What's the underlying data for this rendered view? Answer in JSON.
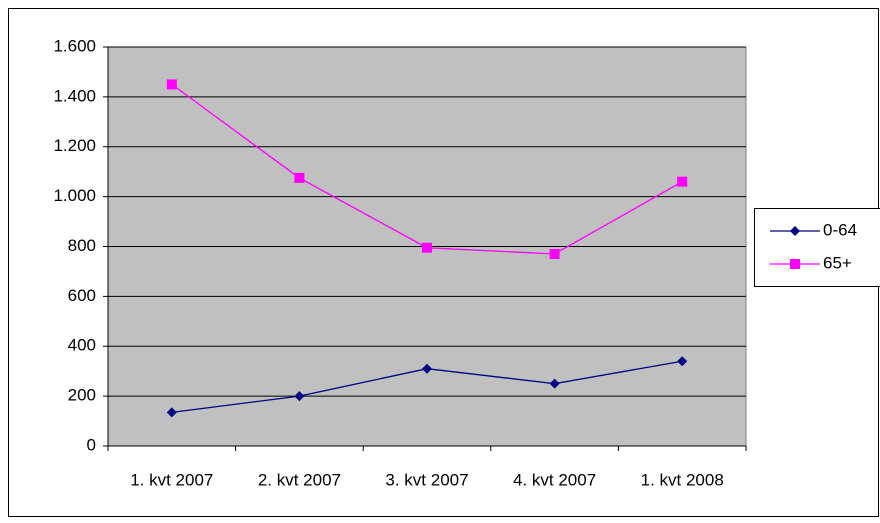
{
  "chart_data": {
    "type": "line",
    "categories": [
      "1. kvt 2007",
      "2. kvt 2007",
      "3. kvt 2007",
      "4. kvt 2007",
      "1. kvt 2008"
    ],
    "series": [
      {
        "name": "0-64",
        "color": "#000080",
        "marker": "diamond",
        "values": [
          135,
          200,
          310,
          250,
          340
        ]
      },
      {
        "name": "65+",
        "color": "#ff00ff",
        "marker": "square",
        "values": [
          1450,
          1075,
          795,
          770,
          1060
        ]
      }
    ],
    "ylim": [
      0,
      1600
    ],
    "yticks": [
      0,
      200,
      400,
      600,
      800,
      {
        "value": 1000,
        "label": "1.000"
      },
      {
        "value": 1200,
        "label": "1.200"
      },
      {
        "value": 1400,
        "label": "1.400"
      },
      {
        "value": 1600,
        "label": "1.600"
      }
    ],
    "grid": true,
    "legend": "right"
  }
}
